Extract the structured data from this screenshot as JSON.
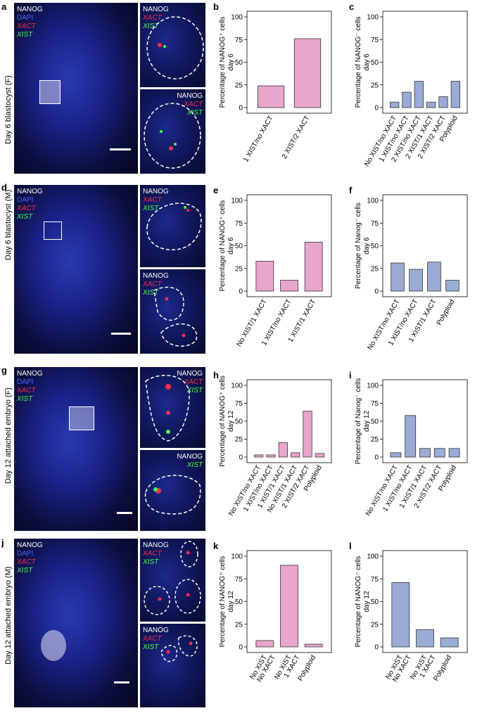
{
  "colors": {
    "pink": "#e8a6cc",
    "blue": "#9aabd6",
    "nanog": "#ffffff",
    "dapi": "#4a63ff",
    "xact": "#ff2a4a",
    "xist": "#4cff4c"
  },
  "channels": {
    "nanog": "NANOG",
    "dapi": "DAPI",
    "xact": "XACT",
    "xist": "XIST"
  },
  "rows": [
    {
      "letter": "a",
      "label": "Day 6 blastocyst (F)"
    },
    {
      "letter": "d",
      "label": "Day 6 blastocyst (M)"
    },
    {
      "letter": "g",
      "label": "Day 12 attached embryo (F)"
    },
    {
      "letter": "j",
      "label": "Day 12 attached embryo (M)"
    }
  ],
  "chart_data": [
    {
      "panel": "b",
      "type": "bar",
      "ylabel_line1": "Percentage of NANOG⁺ cells",
      "ylabel_line2": "day 6",
      "ylim": [
        0,
        100
      ],
      "yticks": [
        0,
        25,
        50,
        75,
        100
      ],
      "categories": [
        "1 XIST/no XACT",
        "2 XIST/2 XACT"
      ],
      "values": [
        24,
        76
      ],
      "color": "pink"
    },
    {
      "panel": "c",
      "type": "bar",
      "ylabel_line1": "Percentage of NANOG⁻ cells",
      "ylabel_line2": "day 6",
      "ylim": [
        0,
        100
      ],
      "yticks": [
        0,
        25,
        50,
        75,
        100
      ],
      "categories": [
        "No XIST/no XACT",
        "1 XIST/no XACT",
        "2 XIST/no XACT",
        "2 XIST/1 XACT",
        "2 XIST/2 XACT",
        "Polyploid"
      ],
      "values": [
        6,
        17,
        29,
        6,
        12,
        29
      ],
      "color": "blue"
    },
    {
      "panel": "e",
      "type": "bar",
      "ylabel_line1": "Percentage of NANOG⁺ cells",
      "ylabel_line2": "day 6",
      "ylim": [
        0,
        100
      ],
      "yticks": [
        0,
        25,
        50,
        75,
        100
      ],
      "categories": [
        "No XIST/1 XACT",
        "1 XIST/no XACT",
        "1 XIST/1 XACT"
      ],
      "values": [
        33,
        12,
        54
      ],
      "color": "pink"
    },
    {
      "panel": "f",
      "type": "bar",
      "ylabel_line1": "Percentage of Nanog⁻ cells",
      "ylabel_line2": "day 6",
      "ylim": [
        0,
        100
      ],
      "yticks": [
        0,
        25,
        50,
        75,
        100
      ],
      "categories": [
        "No XIST/no XACT",
        "1 XIST/no XACT",
        "1 XIST/1 XACT",
        "Polyploid"
      ],
      "values": [
        31,
        24,
        32,
        12
      ],
      "color": "blue"
    },
    {
      "panel": "h",
      "type": "bar",
      "ylabel_line1": "Percentage of NANOG⁺ cells",
      "ylabel_line2": "day 12",
      "ylim": [
        0,
        100
      ],
      "yticks": [
        0,
        25,
        50,
        75,
        100
      ],
      "categories": [
        "No XIST/no XACT",
        "1 XIST/no XACT",
        "1 XIST/1 XACT",
        "No XIST/1 XACT",
        "2 XIST/2 XACT",
        "Polyploid"
      ],
      "values": [
        3,
        3,
        20,
        6,
        64,
        5
      ],
      "color": "pink"
    },
    {
      "panel": "i",
      "type": "bar",
      "ylabel_line1": "Percentage of Nanog⁻ cells",
      "ylabel_line2": "day 12",
      "ylim": [
        0,
        100
      ],
      "yticks": [
        0,
        25,
        50,
        75,
        100
      ],
      "categories": [
        "No XIST/no XACT",
        "1 XIST/no XACT",
        "1 XIST/1 XACT",
        "2 XIST/2 XACT",
        "Polyploid"
      ],
      "values": [
        6,
        58,
        12,
        12,
        12
      ],
      "color": "blue"
    },
    {
      "panel": "k",
      "type": "bar",
      "ylabel_line1": "Percentage of NANOG⁺ cells",
      "ylabel_line2": "day 12",
      "ylim": [
        0,
        100
      ],
      "yticks": [
        0,
        25,
        50,
        75,
        100
      ],
      "categories": [
        "No XIST\nNo XACT",
        "No XIST\n1 XACT",
        "Polyploid"
      ],
      "values": [
        7,
        90,
        3
      ],
      "color": "pink"
    },
    {
      "panel": "l",
      "type": "bar",
      "ylabel_line1": "Percentage of NANOG⁻ cells",
      "ylabel_line2": "day 12",
      "ylim": [
        0,
        100
      ],
      "yticks": [
        0,
        25,
        50,
        75,
        100
      ],
      "categories": [
        "No XIST\nNo XACT",
        "No XIST\n1 XACT",
        "Polyploid"
      ],
      "values": [
        71,
        19,
        10
      ],
      "color": "blue"
    }
  ]
}
